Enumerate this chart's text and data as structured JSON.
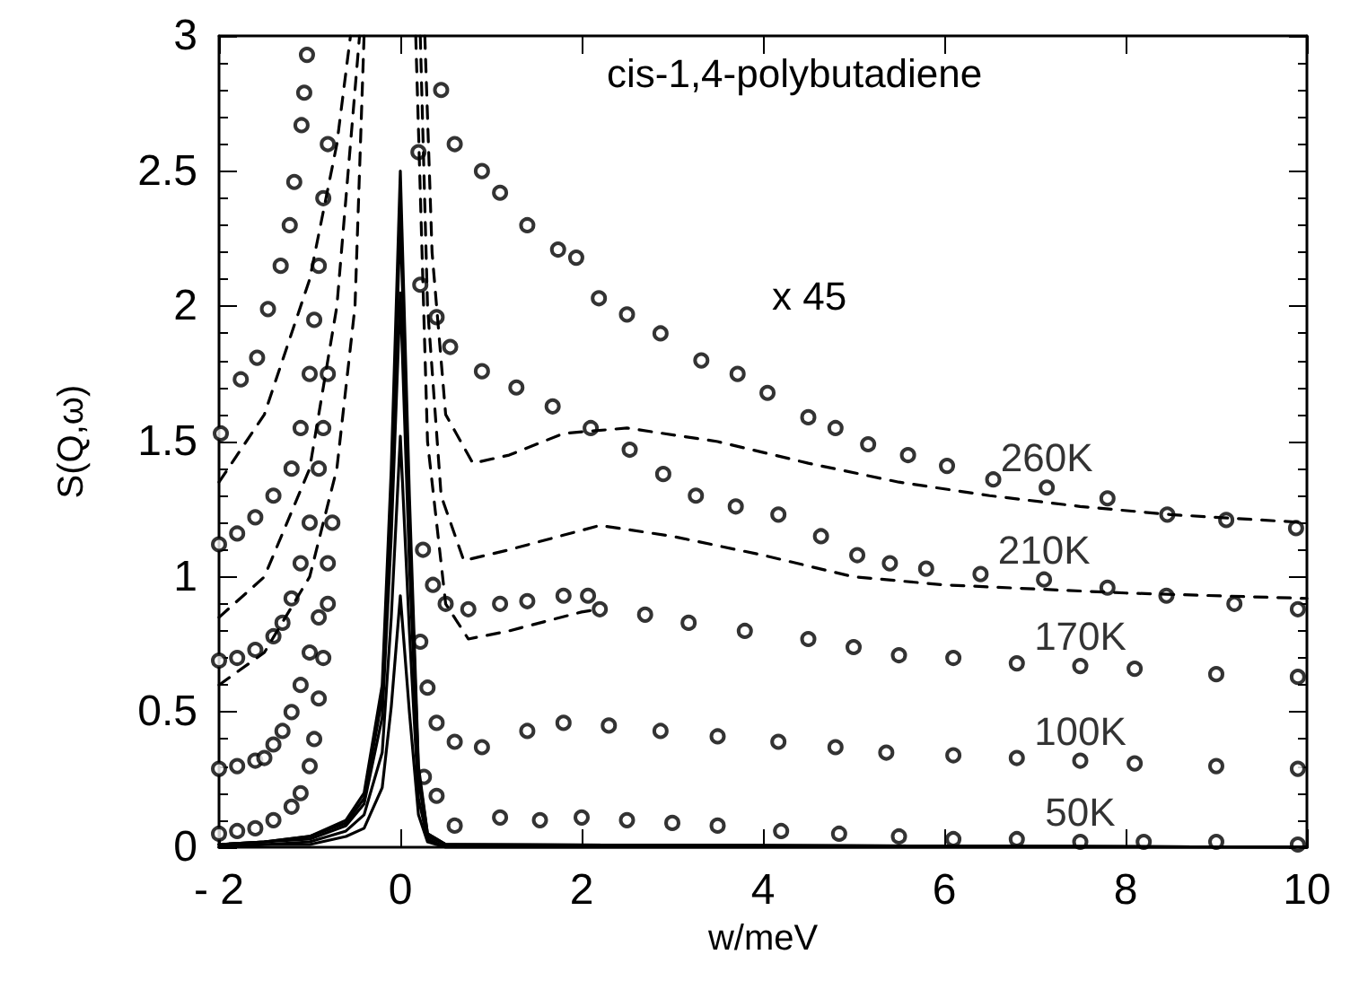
{
  "chart_data": {
    "type": "scatter",
    "xlabel": "w/meV",
    "ylabel": "S(Q,ω)",
    "xlim": [
      -2,
      10
    ],
    "ylim": [
      0,
      3
    ],
    "xticks": [
      {
        "value": -2,
        "label": "- 2"
      },
      0,
      2,
      4,
      6,
      8,
      10
    ],
    "yticks": [
      0,
      0.5,
      1,
      1.5,
      2,
      2.5,
      3
    ],
    "marker": "circle",
    "annotations": [
      "cis-1,4-polybutadiene",
      "x 45"
    ],
    "series": [
      {
        "name": "50K",
        "color": "#000000",
        "x": [
          -2,
          -1.8,
          -1.6,
          -1.4,
          -1.2,
          -1.1,
          -1.0,
          -0.95,
          -0.9,
          -0.85,
          -0.8,
          0.26,
          0.4,
          0.6,
          1.1,
          1.54,
          2,
          2.5,
          3,
          3.5,
          4.2,
          4.84,
          5.5,
          6.1,
          6.8,
          7.5,
          8.2,
          9,
          9.9
        ],
        "values": [
          0.05,
          0.06,
          0.07,
          0.1,
          0.15,
          0.2,
          0.3,
          0.4,
          0.55,
          0.7,
          0.9,
          0.26,
          0.19,
          0.08,
          0.11,
          0.1,
          0.11,
          0.1,
          0.09,
          0.08,
          0.06,
          0.05,
          0.04,
          0.03,
          0.03,
          0.02,
          0.02,
          0.02,
          0.01
        ]
      },
      {
        "name": "100K",
        "color": "#000000",
        "x": [
          -2,
          -1.8,
          -1.6,
          -1.5,
          -1.4,
          -1.3,
          -1.2,
          -1.1,
          -1.0,
          -0.9,
          -0.8,
          -0.75,
          0.22,
          0.3,
          0.4,
          0.6,
          0.9,
          1.4,
          1.8,
          2.3,
          2.87,
          3.5,
          4.17,
          4.8,
          5.36,
          6.1,
          6.8,
          7.5,
          8.1,
          9,
          9.9
        ],
        "values": [
          0.29,
          0.3,
          0.32,
          0.33,
          0.38,
          0.43,
          0.5,
          0.6,
          0.72,
          0.85,
          1.05,
          1.2,
          0.76,
          0.59,
          0.46,
          0.39,
          0.37,
          0.43,
          0.46,
          0.45,
          0.43,
          0.41,
          0.39,
          0.37,
          0.35,
          0.34,
          0.33,
          0.32,
          0.31,
          0.3,
          0.29
        ]
      },
      {
        "name": "170K",
        "color": "#000000",
        "x": [
          -2,
          -1.8,
          -1.6,
          -1.4,
          -1.3,
          -1.2,
          -1.1,
          -1.0,
          -0.9,
          -0.85,
          -0.8,
          0.25,
          0.36,
          0.5,
          0.75,
          1.1,
          1.4,
          1.8,
          2.07,
          2.2,
          2.7,
          3.18,
          3.8,
          4.5,
          5,
          5.5,
          6.1,
          6.8,
          7.5,
          8.1,
          9,
          9.9
        ],
        "values": [
          0.69,
          0.7,
          0.73,
          0.78,
          0.83,
          0.92,
          1.05,
          1.2,
          1.4,
          1.55,
          1.75,
          1.1,
          0.97,
          0.9,
          0.88,
          0.9,
          0.91,
          0.93,
          0.93,
          0.88,
          0.86,
          0.83,
          0.8,
          0.77,
          0.74,
          0.71,
          0.7,
          0.68,
          0.67,
          0.66,
          0.64,
          0.63
        ]
      },
      {
        "name": "210K",
        "color": "#000000",
        "x": [
          -2,
          -1.8,
          -1.6,
          -1.4,
          -1.2,
          -1.1,
          -1.0,
          -0.95,
          -0.9,
          -0.85,
          -0.8,
          0.22,
          0.4,
          0.55,
          0.9,
          1.28,
          1.68,
          2.1,
          2.53,
          2.9,
          3.26,
          3.7,
          4.17,
          4.64,
          5.04,
          5.4,
          5.8,
          6.4,
          7.1,
          7.8,
          8.45,
          9.2,
          9.9
        ],
        "values": [
          1.12,
          1.16,
          1.22,
          1.3,
          1.4,
          1.55,
          1.75,
          1.95,
          2.15,
          2.4,
          2.6,
          2.08,
          1.96,
          1.85,
          1.76,
          1.7,
          1.63,
          1.55,
          1.47,
          1.38,
          1.3,
          1.26,
          1.23,
          1.15,
          1.08,
          1.05,
          1.03,
          1.01,
          0.99,
          0.96,
          0.93,
          0.9,
          0.88
        ]
      },
      {
        "name": "260K",
        "color": "#000000",
        "x": [
          -1.98,
          -1.76,
          -1.58,
          -1.46,
          -1.32,
          -1.22,
          -1.17,
          -1.09,
          -1.06,
          -1.03,
          0.2,
          0.45,
          0.6,
          0.9,
          1.1,
          1.4,
          1.74,
          1.94,
          2.19,
          2.5,
          2.87,
          3.32,
          3.72,
          4.05,
          4.5,
          4.8,
          5.16,
          5.6,
          6.03,
          6.54,
          7.13,
          7.8,
          8.46,
          9.11,
          9.88
        ],
        "values": [
          1.53,
          1.73,
          1.81,
          1.99,
          2.15,
          2.3,
          2.46,
          2.67,
          2.79,
          2.93,
          2.57,
          2.8,
          2.6,
          2.5,
          2.42,
          2.3,
          2.21,
          2.18,
          2.03,
          1.97,
          1.9,
          1.8,
          1.75,
          1.68,
          1.59,
          1.55,
          1.49,
          1.45,
          1.41,
          1.36,
          1.33,
          1.29,
          1.23,
          1.21,
          1.18
        ]
      },
      {
        "type": "line",
        "line_style": "dashed",
        "marker": "none",
        "color": "#000000",
        "x": [
          -2,
          -1.5,
          -1,
          -0.7,
          -0.55,
          -0.53,
          0.25,
          0.27,
          0.35,
          0.5,
          0.8,
          1.2,
          1.8,
          2.5,
          3.5,
          4.5,
          5.5,
          6.5,
          7.5,
          8.5,
          10
        ],
        "values": [
          1.35,
          1.6,
          2.1,
          2.6,
          3.0,
          null,
          null,
          3.0,
          2.2,
          1.6,
          1.42,
          1.45,
          1.53,
          1.55,
          1.5,
          1.42,
          1.35,
          1.3,
          1.26,
          1.23,
          1.2
        ]
      },
      {
        "type": "line",
        "line_style": "dashed",
        "marker": "none",
        "color": "#000000",
        "x": [
          -2,
          -1.5,
          -1,
          -0.7,
          -0.5,
          -0.45,
          0.2,
          0.22,
          0.3,
          0.45,
          0.7,
          1.2,
          2.2,
          3,
          4,
          5,
          6,
          8,
          10
        ],
        "values": [
          0.85,
          1.0,
          1.4,
          2.0,
          2.8,
          3.0,
          null,
          3.0,
          2.0,
          1.3,
          1.06,
          1.1,
          1.19,
          1.15,
          1.08,
          1.0,
          0.97,
          0.94,
          0.92
        ]
      },
      {
        "type": "line",
        "line_style": "dashed",
        "marker": "none",
        "color": "#000000",
        "x": [
          -2,
          -1.5,
          -1,
          -0.7,
          -0.5,
          -0.4,
          0.15,
          0.17,
          0.3,
          0.5,
          0.75,
          1.2,
          2,
          2.2
        ],
        "values": [
          0.6,
          0.72,
          1.0,
          1.4,
          2.0,
          3.0,
          null,
          3.0,
          1.5,
          0.9,
          0.77,
          0.8,
          0.87,
          0.88
        ]
      },
      {
        "type": "line",
        "line_style": "solid",
        "marker": "none",
        "color": "#000000",
        "x": [
          -2,
          -1.5,
          -1,
          -0.6,
          -0.4,
          -0.2,
          -0.1,
          0,
          0.1,
          0.2,
          0.3,
          0.5,
          10
        ],
        "values": [
          0.01,
          0.02,
          0.04,
          0.1,
          0.2,
          0.6,
          1.4,
          2.5,
          1.3,
          0.3,
          0.05,
          0.01,
          0
        ]
      },
      {
        "type": "line",
        "line_style": "solid",
        "marker": "none",
        "color": "#000000",
        "x": [
          -2,
          -1.5,
          -1,
          -0.6,
          -0.4,
          -0.2,
          -0.1,
          0,
          0.1,
          0.2,
          0.3,
          0.5,
          10
        ],
        "values": [
          0.01,
          0.02,
          0.04,
          0.09,
          0.18,
          0.55,
          1.3,
          2.33,
          1.2,
          0.28,
          0.05,
          0.01,
          0
        ]
      },
      {
        "type": "line",
        "line_style": "solid",
        "marker": "none",
        "color": "#000000",
        "x": [
          -2,
          -1.5,
          -1,
          -0.6,
          -0.4,
          -0.2,
          -0.1,
          0,
          0.1,
          0.2,
          0.3,
          0.5,
          10
        ],
        "values": [
          0.01,
          0.02,
          0.03,
          0.08,
          0.16,
          0.48,
          1.15,
          2.05,
          1.05,
          0.25,
          0.04,
          0.01,
          0
        ]
      },
      {
        "type": "line",
        "line_style": "solid",
        "marker": "none",
        "color": "#000000",
        "x": [
          -2,
          -1.5,
          -1,
          -0.6,
          -0.4,
          -0.2,
          -0.1,
          0,
          0.1,
          0.2,
          0.3,
          0.5,
          10
        ],
        "values": [
          0,
          0.01,
          0.02,
          0.06,
          0.12,
          0.35,
          0.85,
          1.52,
          0.8,
          0.18,
          0.03,
          0,
          0
        ]
      },
      {
        "type": "line",
        "line_style": "solid",
        "marker": "none",
        "color": "#000000",
        "x": [
          -2,
          -1.5,
          -1,
          -0.6,
          -0.4,
          -0.2,
          -0.1,
          0,
          0.1,
          0.2,
          0.3,
          0.5,
          10
        ],
        "values": [
          0,
          0.01,
          0.01,
          0.04,
          0.07,
          0.22,
          0.52,
          0.93,
          0.5,
          0.12,
          0.02,
          0,
          0
        ]
      }
    ]
  }
}
